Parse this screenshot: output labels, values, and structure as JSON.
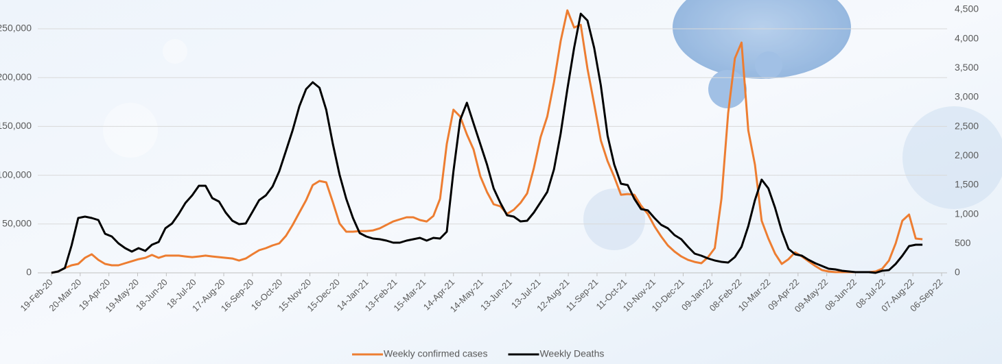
{
  "chart_data": {
    "type": "line",
    "x": [
      "19-Feb-20",
      "26-Feb-20",
      "04-Mar-20",
      "11-Mar-20",
      "18-Mar-20",
      "25-Mar-20",
      "01-Apr-20",
      "08-Apr-20",
      "15-Apr-20",
      "22-Apr-20",
      "29-Apr-20",
      "06-May-20",
      "13-May-20",
      "20-May-20",
      "27-May-20",
      "03-Jun-20",
      "10-Jun-20",
      "17-Jun-20",
      "24-Jun-20",
      "01-Jul-20",
      "08-Jul-20",
      "15-Jul-20",
      "22-Jul-20",
      "29-Jul-20",
      "05-Aug-20",
      "12-Aug-20",
      "19-Aug-20",
      "26-Aug-20",
      "02-Sep-20",
      "09-Sep-20",
      "16-Sep-20",
      "23-Sep-20",
      "30-Sep-20",
      "07-Oct-20",
      "14-Oct-20",
      "21-Oct-20",
      "28-Oct-20",
      "04-Nov-20",
      "11-Nov-20",
      "18-Nov-20",
      "25-Nov-20",
      "02-Dec-20",
      "09-Dec-20",
      "16-Dec-20",
      "23-Dec-20",
      "30-Dec-20",
      "06-Jan-21",
      "13-Jan-21",
      "20-Jan-21",
      "27-Jan-21",
      "03-Feb-21",
      "10-Feb-21",
      "17-Feb-21",
      "24-Feb-21",
      "03-Mar-21",
      "10-Mar-21",
      "17-Mar-21",
      "24-Mar-21",
      "31-Mar-21",
      "07-Apr-21",
      "14-Apr-21",
      "21-Apr-21",
      "28-Apr-21",
      "05-May-21",
      "12-May-21",
      "19-May-21",
      "26-May-21",
      "02-Jun-21",
      "09-Jun-21",
      "16-Jun-21",
      "23-Jun-21",
      "30-Jun-21",
      "07-Jul-21",
      "14-Jul-21",
      "21-Jul-21",
      "28-Jul-21",
      "04-Aug-21",
      "11-Aug-21",
      "18-Aug-21",
      "25-Aug-21",
      "01-Sep-21",
      "08-Sep-21",
      "15-Sep-21",
      "22-Sep-21",
      "29-Sep-21",
      "06-Oct-21",
      "13-Oct-21",
      "20-Oct-21",
      "27-Oct-21",
      "03-Nov-21",
      "10-Nov-21",
      "17-Nov-21",
      "24-Nov-21",
      "01-Dec-21",
      "08-Dec-21",
      "15-Dec-21",
      "22-Dec-21",
      "29-Dec-21",
      "05-Jan-22",
      "12-Jan-22",
      "19-Jan-22",
      "26-Jan-22",
      "02-Feb-22",
      "09-Feb-22",
      "16-Feb-22",
      "23-Feb-22",
      "02-Mar-22",
      "09-Mar-22",
      "16-Mar-22",
      "23-Mar-22",
      "30-Mar-22",
      "06-Apr-22",
      "13-Apr-22",
      "20-Apr-22",
      "27-Apr-22",
      "04-May-22",
      "11-May-22",
      "18-May-22",
      "25-May-22",
      "01-Jun-22",
      "08-Jun-22",
      "15-Jun-22",
      "22-Jun-22",
      "29-Jun-22",
      "06-Jul-22",
      "13-Jul-22",
      "20-Jul-22",
      "27-Jul-22",
      "03-Aug-22",
      "10-Aug-22",
      "17-Aug-22"
    ],
    "xticks": [
      "19-Feb-20",
      "20-Mar-20",
      "19-Apr-20",
      "19-May-20",
      "18-Jun-20",
      "18-Jul-20",
      "17-Aug-20",
      "16-Sep-20",
      "16-Oct-20",
      "15-Nov-20",
      "15-Dec-20",
      "14-Jan-21",
      "13-Feb-21",
      "15-Mar-21",
      "14-Apr-21",
      "14-May-21",
      "13-Jun-21",
      "13-Jul-21",
      "12-Aug-21",
      "11-Sep-21",
      "11-Oct-21",
      "10-Nov-21",
      "10-Dec-21",
      "09-Jan-22",
      "08-Feb-22",
      "10-Mar-22",
      "09-Apr-22",
      "09-May-22",
      "08-Jun-22",
      "08-Jul-22",
      "07-Aug-22",
      "06-Sep-22"
    ],
    "xlim": [
      "19-Feb-20",
      "06-Sep-22"
    ],
    "ylim": [
      0,
      250000
    ],
    "yticks": [
      0,
      {
        "value": 50000,
        "label": "50,000"
      },
      {
        "value": 100000,
        "label": "100,000"
      },
      {
        "value": 150000,
        "label": "150,000"
      },
      {
        "value": 200000,
        "label": "200,000"
      },
      {
        "value": 250000,
        "label": "250,000"
      }
    ],
    "y2lim": [
      0,
      4500
    ],
    "y2ticks": [
      0,
      500,
      {
        "value": 1000,
        "label": "1,000"
      },
      {
        "value": 1500,
        "label": "1,500"
      },
      {
        "value": 2000,
        "label": "2,000"
      },
      {
        "value": 2500,
        "label": "2,500"
      },
      {
        "value": 3000,
        "label": "3,000"
      },
      {
        "value": 3500,
        "label": "3,500"
      },
      {
        "value": 4000,
        "label": "4,000"
      },
      {
        "value": 4500,
        "label": "4,500"
      }
    ],
    "grid": true,
    "legend": "bottom",
    "series": [
      {
        "name": "Weekly confirmed cases",
        "color": "#ed7d31",
        "values": [
          0,
          1400,
          4900,
          7700,
          9100,
          15400,
          19000,
          13300,
          9100,
          7700,
          7700,
          9800,
          11900,
          14000,
          15400,
          18300,
          15400,
          17600,
          17600,
          17600,
          16800,
          16100,
          16800,
          17600,
          16800,
          16100,
          15400,
          14700,
          12600,
          14700,
          19000,
          23200,
          25300,
          28100,
          30200,
          37900,
          49100,
          61800,
          74400,
          89900,
          94100,
          92700,
          72300,
          50500,
          42100,
          42100,
          42800,
          42800,
          43500,
          45600,
          49100,
          52600,
          54800,
          56900,
          56900,
          54100,
          52600,
          58300,
          75800,
          132000,
          167100,
          160100,
          141800,
          126400,
          99000,
          82800,
          70200,
          68100,
          60400,
          64600,
          71600,
          81400,
          107400,
          139000,
          160100,
          195200,
          237300,
          268900,
          251300,
          254100,
          209200,
          172700,
          135500,
          114400,
          98300,
          80000,
          80700,
          80000,
          68800,
          60400,
          47700,
          37200,
          28100,
          21800,
          16800,
          13300,
          11200,
          9800,
          16100,
          25300,
          75800,
          163600,
          219700,
          235900,
          146000,
          110900,
          53400,
          35100,
          19700,
          9100,
          14000,
          21100,
          16800,
          11900,
          7000,
          2800,
          1400,
          700,
          700,
          700,
          700,
          700,
          700,
          1400,
          4200,
          12600,
          30200,
          53400,
          59700,
          35100,
          34400
        ]
      },
      {
        "name": "Weekly Deaths",
        "color": "#000000",
        "axis": "y2",
        "values": [
          0,
          23,
          82,
          469,
          938,
          961,
          938,
          902,
          668,
          621,
          504,
          422,
          363,
          422,
          375,
          481,
          527,
          762,
          844,
          1008,
          1195,
          1324,
          1488,
          1488,
          1277,
          1219,
          1031,
          891,
          832,
          844,
          1043,
          1242,
          1324,
          1477,
          1735,
          2086,
          2438,
          2848,
          3141,
          3258,
          3164,
          2789,
          2203,
          1676,
          1266,
          938,
          680,
          621,
          586,
          574,
          551,
          516,
          516,
          551,
          574,
          598,
          551,
          598,
          586,
          703,
          1735,
          2614,
          2907,
          2555,
          2203,
          1852,
          1442,
          1195,
          984,
          961,
          879,
          891,
          1031,
          1207,
          1383,
          1770,
          2379,
          3141,
          3844,
          4430,
          4313,
          3844,
          3200,
          2344,
          1852,
          1524,
          1500,
          1266,
          1090,
          1067,
          938,
          820,
          762,
          645,
          574,
          445,
          328,
          293,
          246,
          211,
          188,
          176,
          270,
          445,
          797,
          1242,
          1594,
          1442,
          1113,
          715,
          410,
          316,
          293,
          223,
          164,
          117,
          70,
          59,
          35,
          23,
          12,
          12,
          12,
          0,
          35,
          47,
          152,
          293,
          457,
          481,
          481
        ]
      }
    ]
  }
}
